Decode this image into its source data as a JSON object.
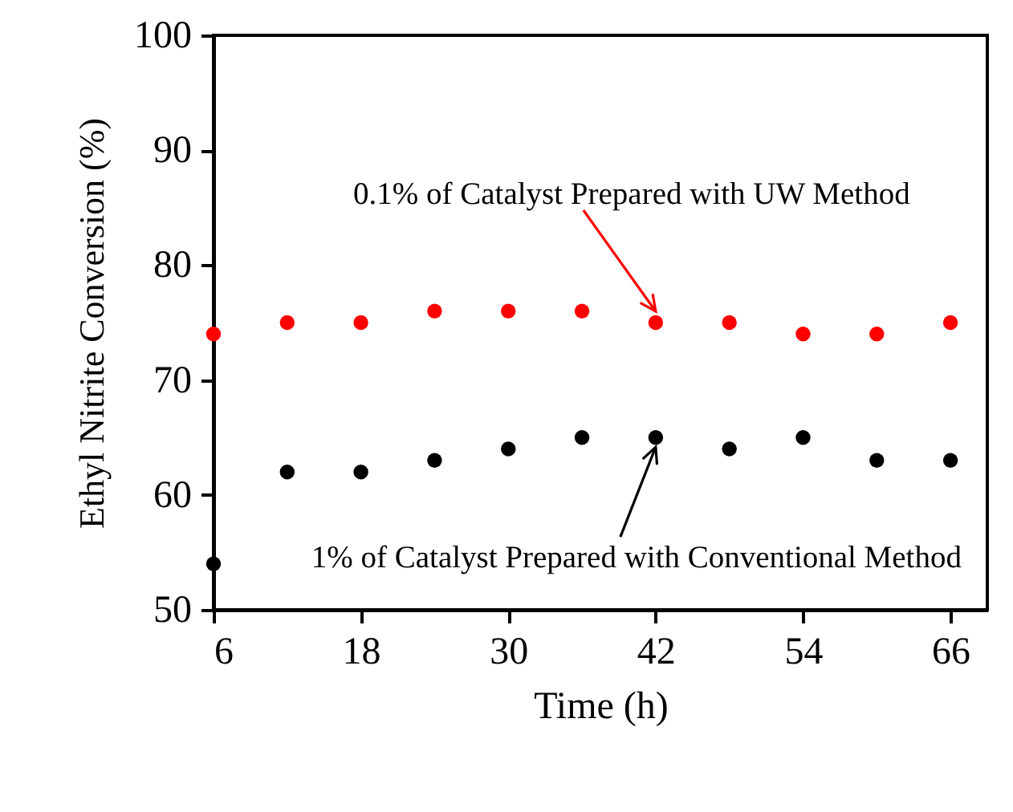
{
  "chart_data": {
    "type": "scatter",
    "xlabel": "Time (h)",
    "ylabel": "Ethyl Nitrite Conversion (%)",
    "x": [
      6,
      12,
      18,
      24,
      30,
      36,
      42,
      48,
      54,
      60,
      66
    ],
    "series": [
      {
        "color": "#ff0000",
        "values": [
          74,
          75,
          75,
          76,
          76,
          76,
          75,
          75,
          74,
          74,
          75
        ]
      },
      {
        "color": "#000000",
        "values": [
          54,
          62,
          62,
          63,
          64,
          65,
          65,
          64,
          65,
          63,
          63
        ]
      }
    ],
    "xlim": [
      6,
      69
    ],
    "ylim": [
      50,
      100
    ],
    "xticks": [
      6,
      18,
      30,
      42,
      54,
      66
    ],
    "yticks": [
      50,
      60,
      70,
      80,
      90,
      100
    ],
    "marker": "circle",
    "grid": false,
    "annotations": [
      {
        "text": "0.1% of Catalyst Prepared with UW Method",
        "x": 42,
        "y": 75
      },
      {
        "text": "1% of Catalyst Prepared with Conventional Method",
        "x": 42,
        "y": 65
      }
    ]
  }
}
